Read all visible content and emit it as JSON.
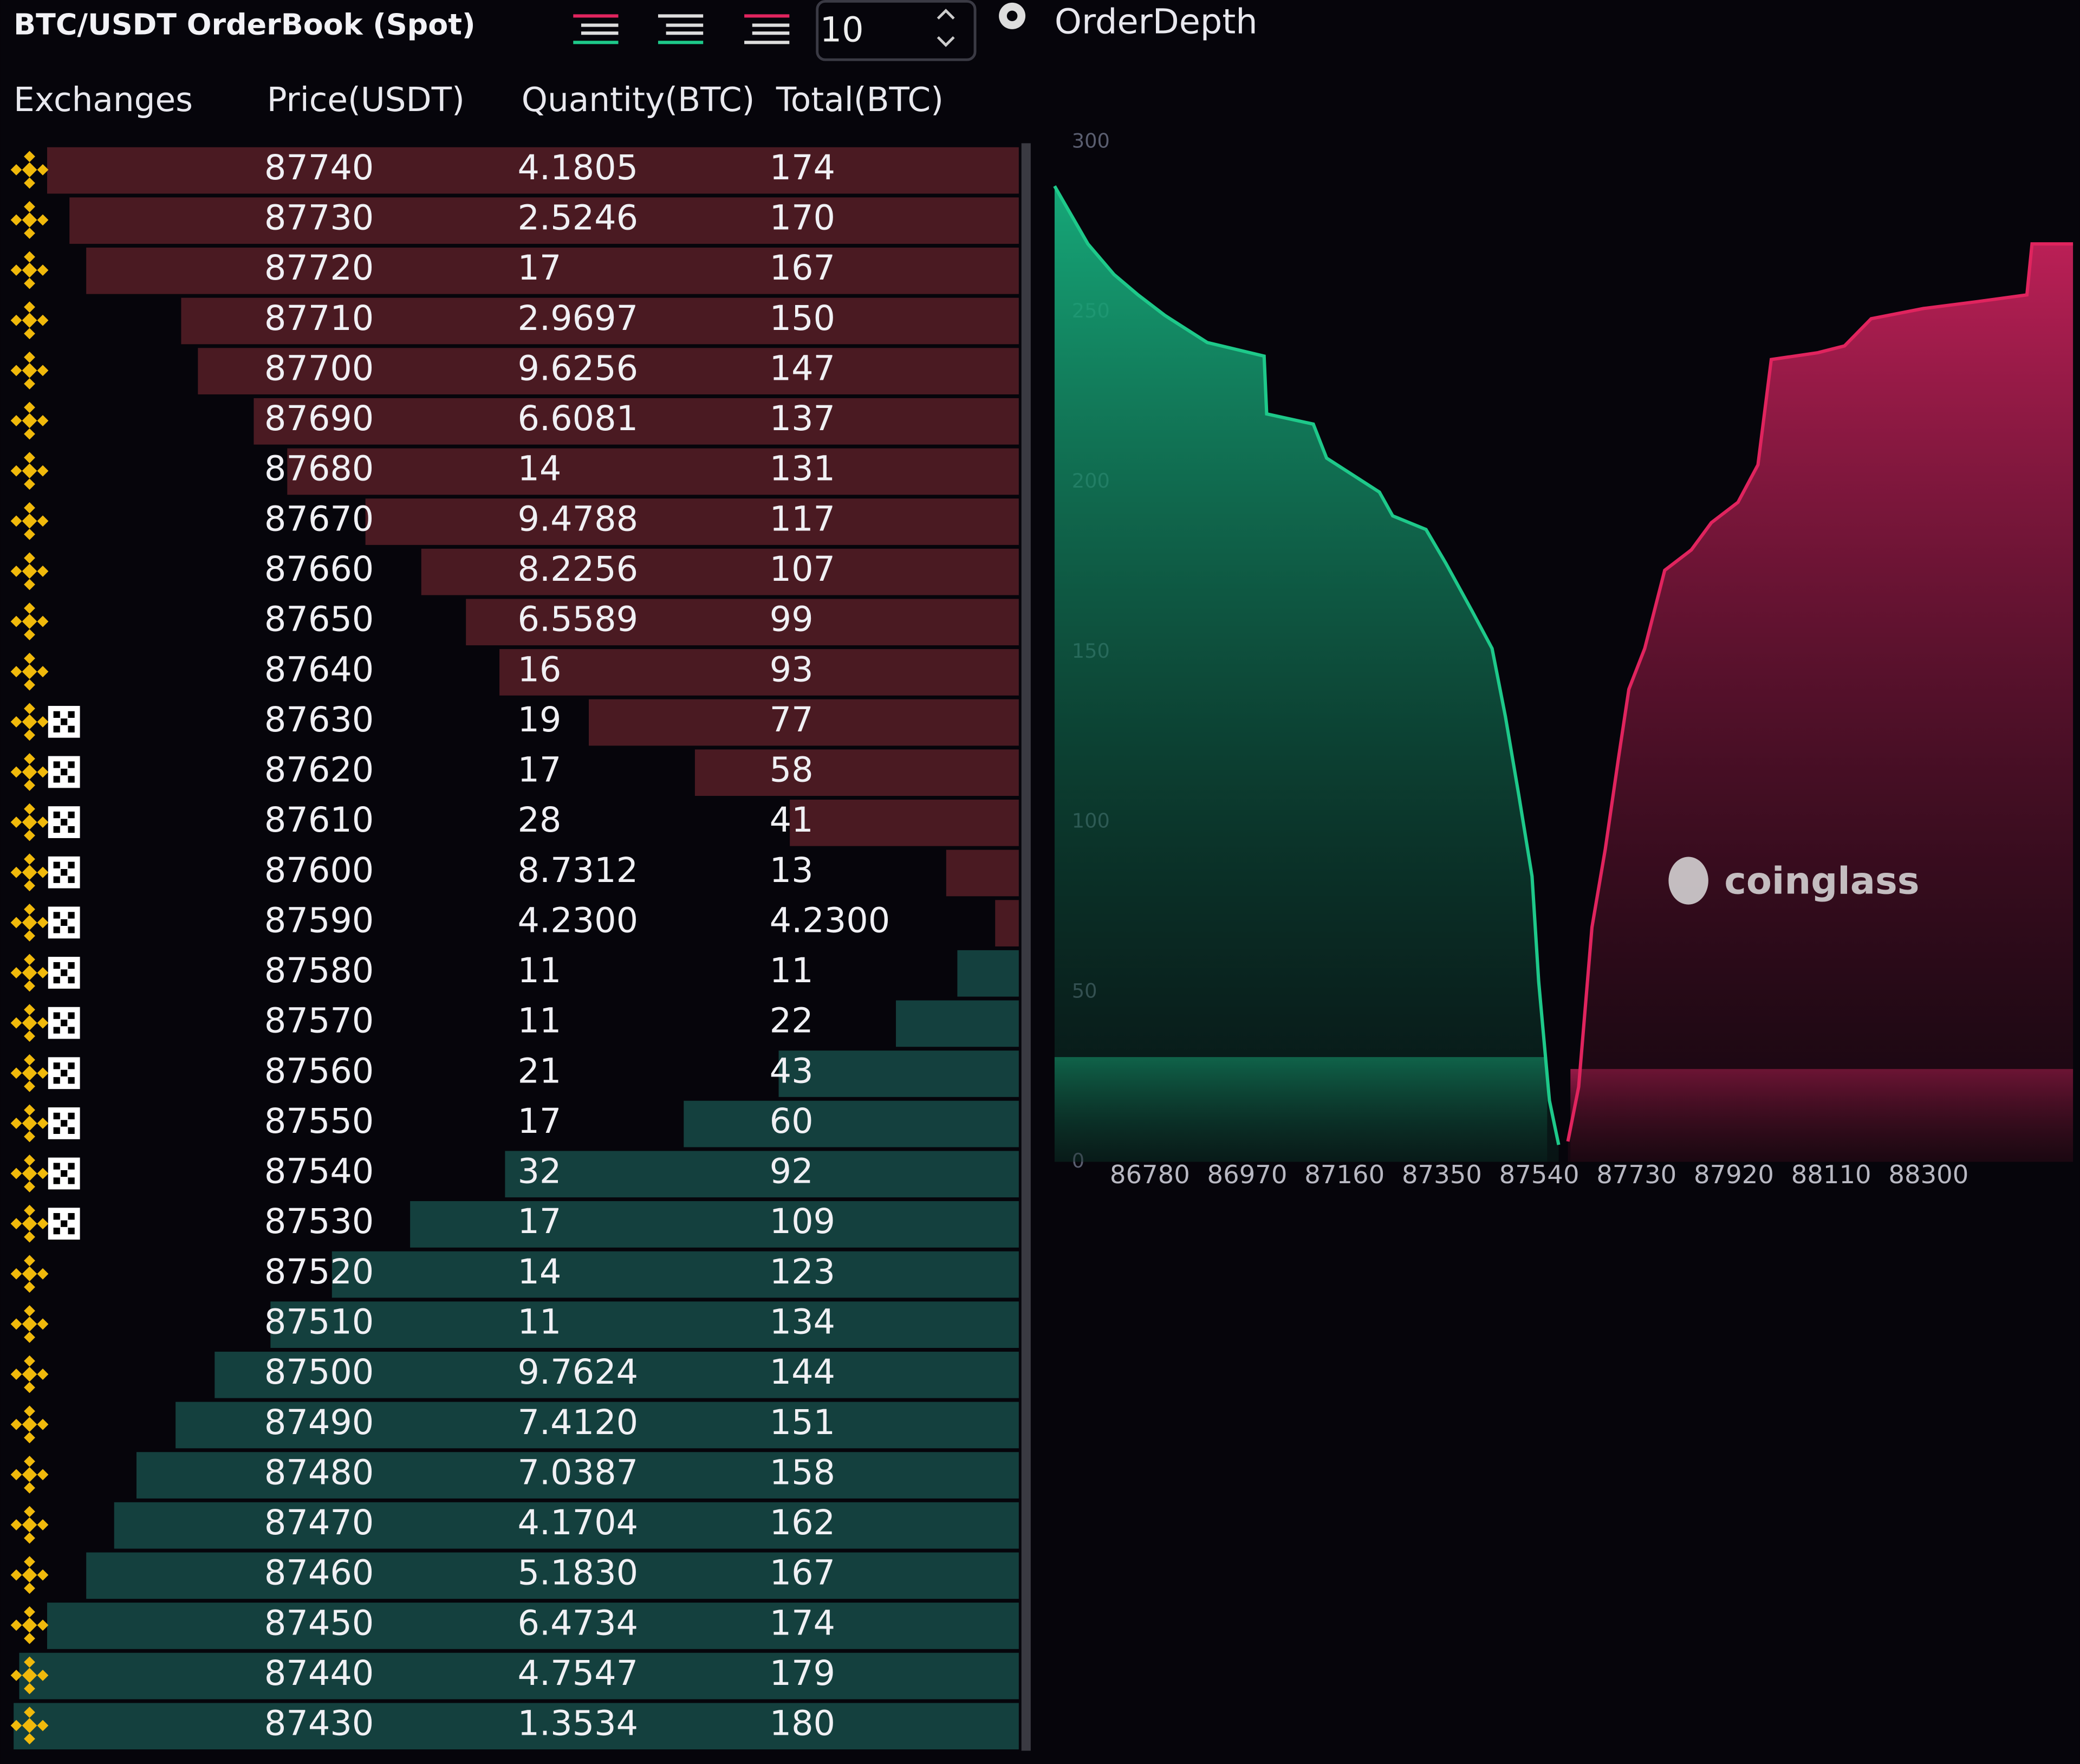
{
  "toolbar": {
    "title": "BTC/USDT OrderBook (Spot)",
    "depth": "10",
    "chart_title": "OrderDepth"
  },
  "table": {
    "columns": [
      "Exchanges",
      "Price(USDT)",
      "Quantity(BTC)",
      "Total(BTC)"
    ],
    "asks": [
      {
        "price": "87740",
        "quantity": "4.1805",
        "total": "174",
        "exchanges": 1
      },
      {
        "price": "87730",
        "quantity": "2.5246",
        "total": "170",
        "exchanges": 1
      },
      {
        "price": "87720",
        "quantity": "17",
        "total": "167",
        "exchanges": 1
      },
      {
        "price": "87710",
        "quantity": "2.9697",
        "total": "150",
        "exchanges": 1
      },
      {
        "price": "87700",
        "quantity": "9.6256",
        "total": "147",
        "exchanges": 1
      },
      {
        "price": "87690",
        "quantity": "6.6081",
        "total": "137",
        "exchanges": 1
      },
      {
        "price": "87680",
        "quantity": "14",
        "total": "131",
        "exchanges": 1
      },
      {
        "price": "87670",
        "quantity": "9.4788",
        "total": "117",
        "exchanges": 1
      },
      {
        "price": "87660",
        "quantity": "8.2256",
        "total": "107",
        "exchanges": 1
      },
      {
        "price": "87650",
        "quantity": "6.5589",
        "total": "99",
        "exchanges": 1
      },
      {
        "price": "87640",
        "quantity": "16",
        "total": "93",
        "exchanges": 1
      },
      {
        "price": "87630",
        "quantity": "19",
        "total": "77",
        "exchanges": 2
      },
      {
        "price": "87620",
        "quantity": "17",
        "total": "58",
        "exchanges": 2
      },
      {
        "price": "87610",
        "quantity": "28",
        "total": "41",
        "exchanges": 2
      },
      {
        "price": "87600",
        "quantity": "8.7312",
        "total": "13",
        "exchanges": 2
      },
      {
        "price": "87590",
        "quantity": "4.2300",
        "total": "4.2300",
        "exchanges": 2
      }
    ],
    "bids": [
      {
        "price": "87580",
        "quantity": "11",
        "total": "11",
        "exchanges": 2
      },
      {
        "price": "87570",
        "quantity": "11",
        "total": "22",
        "exchanges": 2
      },
      {
        "price": "87560",
        "quantity": "21",
        "total": "43",
        "exchanges": 2
      },
      {
        "price": "87550",
        "quantity": "17",
        "total": "60",
        "exchanges": 2
      },
      {
        "price": "87540",
        "quantity": "32",
        "total": "92",
        "exchanges": 2
      },
      {
        "price": "87530",
        "quantity": "17",
        "total": "109",
        "exchanges": 2
      },
      {
        "price": "87520",
        "quantity": "14",
        "total": "123",
        "exchanges": 1
      },
      {
        "price": "87510",
        "quantity": "11",
        "total": "134",
        "exchanges": 1
      },
      {
        "price": "87500",
        "quantity": "9.7624",
        "total": "144",
        "exchanges": 1
      },
      {
        "price": "87490",
        "quantity": "7.4120",
        "total": "151",
        "exchanges": 1
      },
      {
        "price": "87480",
        "quantity": "7.0387",
        "total": "158",
        "exchanges": 1
      },
      {
        "price": "87470",
        "quantity": "4.1704",
        "total": "162",
        "exchanges": 1
      },
      {
        "price": "87460",
        "quantity": "5.1830",
        "total": "167",
        "exchanges": 1
      },
      {
        "price": "87450",
        "quantity": "6.4734",
        "total": "174",
        "exchanges": 1
      },
      {
        "price": "87440",
        "quantity": "4.7547",
        "total": "179",
        "exchanges": 1
      },
      {
        "price": "87430",
        "quantity": "1.3534",
        "total": "180",
        "exchanges": 1
      }
    ]
  },
  "chart_data": {
    "type": "area",
    "watermark": "coinglass",
    "xlim": [
      86594,
      88582
    ],
    "ylim": [
      0,
      300
    ],
    "xticks": [
      86780,
      86970,
      87160,
      87350,
      87540,
      87730,
      87920,
      88110,
      88300
    ],
    "yticks": [
      0,
      50,
      100,
      150,
      200,
      250,
      300
    ],
    "series": [
      {
        "color": "#1ec98a",
        "x": [
          86594,
          86659,
          86710,
          86757,
          86809,
          86892,
          87003,
          87008,
          87099,
          87125,
          87228,
          87254,
          87319,
          87358,
          87409,
          87448,
          87474,
          87500,
          87526,
          87539,
          87560,
          87578
        ],
        "values": [
          287,
          270,
          261,
          255,
          249,
          241,
          237,
          220,
          217,
          207,
          197,
          190,
          186,
          176,
          162,
          151,
          131,
          108,
          84,
          53,
          18,
          5
        ]
      },
      {
        "color": "#e0245e",
        "x": [
          87596,
          87617,
          87643,
          87669,
          87695,
          87715,
          87746,
          87785,
          87837,
          87876,
          87928,
          87967,
          87993,
          88084,
          88136,
          88188,
          88290,
          88394,
          88492,
          88502,
          88582
        ],
        "values": [
          6,
          22,
          69,
          92,
          119,
          139,
          151,
          174,
          180,
          188,
          194,
          205,
          236,
          238,
          240,
          248,
          251,
          253,
          255,
          270,
          270
        ]
      }
    ]
  }
}
